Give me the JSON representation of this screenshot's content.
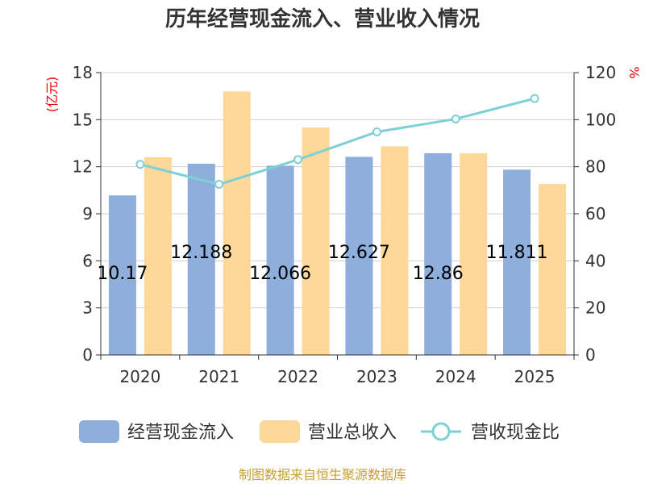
{
  "chart_data": {
    "type": "bar",
    "title": "历年经营现金流入、营业收入情况",
    "categories": [
      "2020",
      "2021",
      "2022",
      "2023",
      "2024",
      "2025"
    ],
    "series": [
      {
        "name": "经营现金流入",
        "kind": "bar",
        "axis": "left",
        "color": "#8eaedc",
        "values": [
          10.17,
          12.188,
          12.066,
          12.627,
          12.86,
          11.811
        ],
        "labels": [
          "10.17",
          "12.188",
          "12.066",
          "12.627",
          "12.86",
          "11.811"
        ]
      },
      {
        "name": "营业总收入",
        "kind": "bar",
        "axis": "left",
        "color": "#fdd898",
        "values": [
          12.6,
          16.8,
          14.5,
          13.3,
          12.85,
          10.9
        ]
      },
      {
        "name": "营收现金比",
        "kind": "line",
        "axis": "right",
        "color": "#7fd0d4",
        "values": [
          81,
          72.5,
          83,
          94.8,
          100.3,
          109
        ]
      }
    ],
    "y_left": {
      "label": "(亿元)",
      "min": 0,
      "max": 18,
      "ticks": [
        "0",
        "3",
        "6",
        "9",
        "12",
        "15",
        "18"
      ]
    },
    "y_right": {
      "label": "%",
      "min": 0,
      "max": 120,
      "ticks": [
        "0",
        "20",
        "40",
        "60",
        "80",
        "100",
        "120"
      ]
    },
    "grid": true,
    "legend_position": "bottom"
  },
  "source": "制图数据来自恒生聚源数据库"
}
